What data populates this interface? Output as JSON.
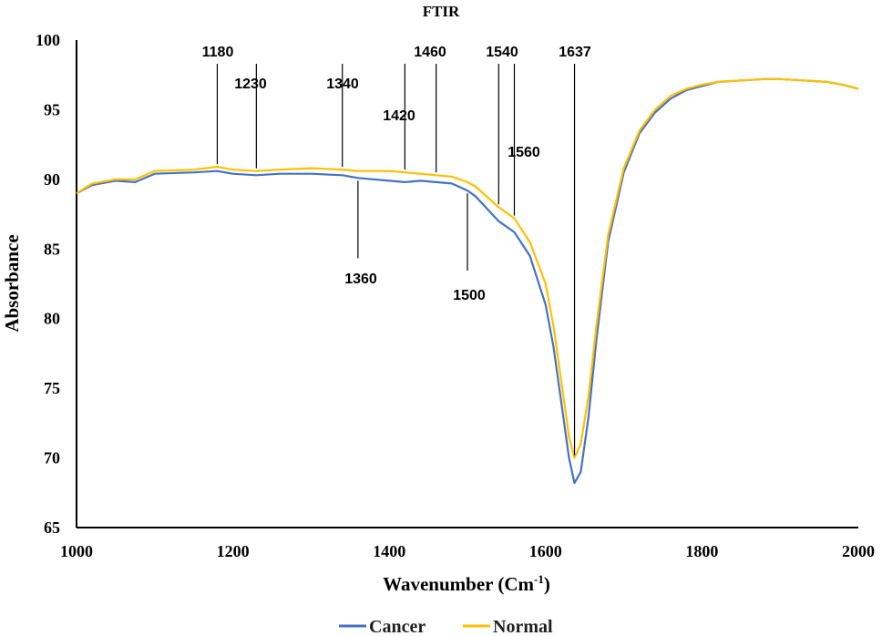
{
  "chart_data": {
    "type": "line",
    "title": "FTIR",
    "xlabel_main": "Wavenumber (Cm",
    "xlabel_sup": "-1",
    "xlabel_end": ")",
    "ylabel": "Absorbance",
    "xlim": [
      1000,
      2000
    ],
    "ylim": [
      65,
      100
    ],
    "xticks": [
      1000,
      1200,
      1400,
      1600,
      1800,
      2000
    ],
    "yticks": [
      65,
      70,
      75,
      80,
      85,
      90,
      95,
      100
    ],
    "grid": false,
    "legend_position": "bottom",
    "series": [
      {
        "name": "Cancer",
        "color": "#4472C4",
        "x": [
          1000,
          1020,
          1050,
          1075,
          1100,
          1150,
          1180,
          1200,
          1230,
          1260,
          1300,
          1340,
          1360,
          1400,
          1420,
          1440,
          1460,
          1480,
          1500,
          1510,
          1520,
          1540,
          1560,
          1580,
          1600,
          1610,
          1620,
          1630,
          1637,
          1645,
          1655,
          1665,
          1680,
          1700,
          1720,
          1740,
          1760,
          1780,
          1800,
          1820,
          1850,
          1880,
          1900,
          1930,
          1960,
          1980,
          2000
        ],
        "y": [
          89.0,
          89.6,
          89.9,
          89.8,
          90.4,
          90.5,
          90.6,
          90.4,
          90.3,
          90.4,
          90.4,
          90.3,
          90.1,
          89.9,
          89.8,
          89.9,
          89.8,
          89.7,
          89.2,
          88.8,
          88.2,
          87.0,
          86.2,
          84.5,
          81.0,
          78.0,
          74.0,
          70.0,
          68.2,
          69.0,
          73.0,
          78.5,
          85.5,
          90.5,
          93.3,
          94.8,
          95.8,
          96.4,
          96.7,
          97.0,
          97.1,
          97.2,
          97.2,
          97.1,
          97.0,
          96.8,
          96.5
        ]
      },
      {
        "name": "Normal",
        "color": "#FFC000",
        "x": [
          1000,
          1020,
          1050,
          1075,
          1100,
          1150,
          1180,
          1200,
          1230,
          1260,
          1300,
          1340,
          1360,
          1400,
          1420,
          1440,
          1460,
          1480,
          1500,
          1510,
          1520,
          1540,
          1560,
          1580,
          1600,
          1610,
          1620,
          1630,
          1637,
          1645,
          1655,
          1665,
          1680,
          1700,
          1720,
          1740,
          1760,
          1780,
          1800,
          1820,
          1850,
          1880,
          1900,
          1930,
          1960,
          1980,
          2000
        ],
        "y": [
          89.0,
          89.7,
          90.0,
          90.0,
          90.6,
          90.7,
          90.9,
          90.7,
          90.6,
          90.7,
          90.8,
          90.7,
          90.6,
          90.6,
          90.5,
          90.4,
          90.3,
          90.2,
          89.8,
          89.5,
          89.0,
          88.0,
          87.2,
          85.5,
          82.5,
          79.5,
          75.5,
          71.5,
          70.0,
          71.0,
          74.5,
          79.5,
          86.0,
          90.8,
          93.5,
          95.0,
          96.0,
          96.5,
          96.8,
          97.0,
          97.1,
          97.2,
          97.2,
          97.1,
          97.0,
          96.8,
          96.5
        ]
      }
    ],
    "annotations": [
      {
        "label": "1180",
        "x": 1180,
        "position": "above"
      },
      {
        "label": "1230",
        "x": 1230,
        "position": "above"
      },
      {
        "label": "1340",
        "x": 1340,
        "position": "above"
      },
      {
        "label": "1420",
        "x": 1420,
        "position": "above"
      },
      {
        "label": "1460",
        "x": 1460,
        "position": "above"
      },
      {
        "label": "1540",
        "x": 1540,
        "position": "above"
      },
      {
        "label": "1560",
        "x": 1560,
        "position": "above"
      },
      {
        "label": "1637",
        "x": 1637,
        "position": "above"
      },
      {
        "label": "1360",
        "x": 1360,
        "position": "below"
      },
      {
        "label": "1500",
        "x": 1500,
        "position": "below"
      }
    ]
  }
}
